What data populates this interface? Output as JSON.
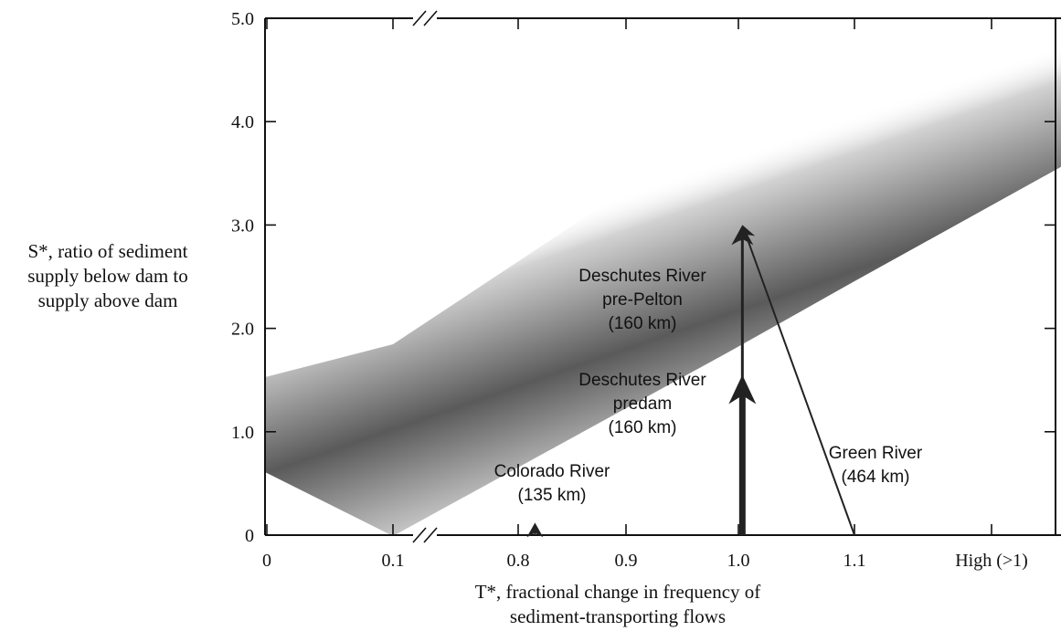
{
  "chart_data": {
    "type": "line",
    "title": "",
    "ylabel_lines": [
      "S*, ratio of sediment",
      "supply below dam to",
      "supply above dam"
    ],
    "xlabel_lines": [
      "T*, fractional change in frequency of",
      "sediment-transporting flows"
    ],
    "ylim": [
      0,
      5.0
    ],
    "y_ticks": [
      "0",
      "1.0",
      "2.0",
      "3.0",
      "4.0",
      "5.0"
    ],
    "x_categories": [
      "0",
      "0.1",
      "0.8",
      "0.9",
      "1.0",
      "1.1",
      "High (>1)"
    ],
    "x_axis_break": "between 0.1 and 0.8",
    "band": {
      "description_visible": false,
      "lower_edge": [
        [
          0,
          0.6
        ],
        [
          0.1,
          0.0
        ],
        [
          1.0,
          1.75
        ],
        [
          1.1,
          2.4
        ],
        [
          1.2,
          3.45
        ]
      ],
      "center": [
        [
          0,
          0.55
        ],
        [
          0.1,
          0.95
        ],
        [
          1.0,
          2.9
        ],
        [
          1.2,
          4.4
        ]
      ],
      "upper_edge": [
        [
          0,
          1.5
        ],
        [
          0.1,
          1.85
        ],
        [
          1.0,
          3.95
        ],
        [
          1.2,
          5.0
        ]
      ]
    },
    "arrows": [
      {
        "label_lines": [
          "Colorado River",
          "(135 km)"
        ],
        "x_from": 0.815,
        "y_from": 0,
        "x_to": 0.815,
        "y_to": 0.12,
        "weight": "thin"
      },
      {
        "label_lines": [
          "Deschutes River",
          "predam",
          "(160 km)"
        ],
        "x_from": 1.0,
        "y_from": 0,
        "x_to": 1.0,
        "y_to": 1.55,
        "weight": "thick"
      },
      {
        "label_lines": [
          "Deschutes River",
          "pre-Pelton",
          "(160 km)"
        ],
        "x_from": 1.0,
        "y_from": 1.4,
        "x_to": 1.0,
        "y_to": 3.0,
        "weight": "medium"
      },
      {
        "label_lines": [
          "Green River",
          "(464 km)"
        ],
        "x_from": 1.1,
        "y_from": 0,
        "x_to": 1.0,
        "y_to": 3.0,
        "weight": "thin"
      }
    ]
  }
}
